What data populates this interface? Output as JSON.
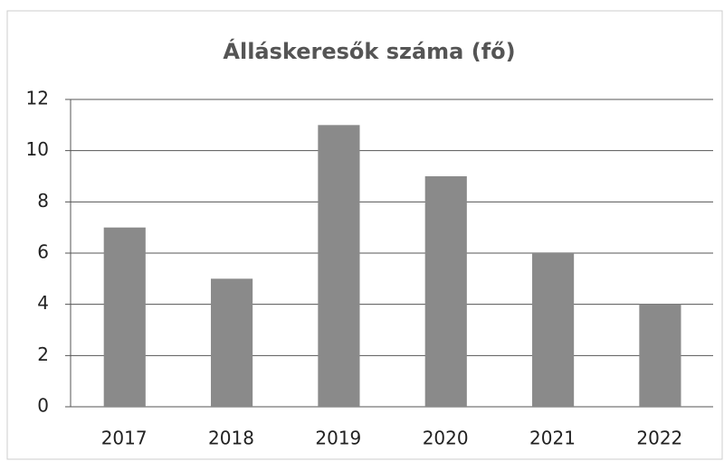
{
  "chart_data": {
    "type": "bar",
    "title": "Álláskeresők száma (fő)",
    "categories": [
      "2017",
      "2018",
      "2019",
      "2020",
      "2021",
      "2022"
    ],
    "values": [
      7,
      5,
      11,
      9,
      6,
      4
    ],
    "color": "#8a8a8a",
    "ylim": [
      0,
      12
    ],
    "yticks": [
      0,
      2,
      4,
      6,
      8,
      10,
      12
    ],
    "grid": true
  }
}
